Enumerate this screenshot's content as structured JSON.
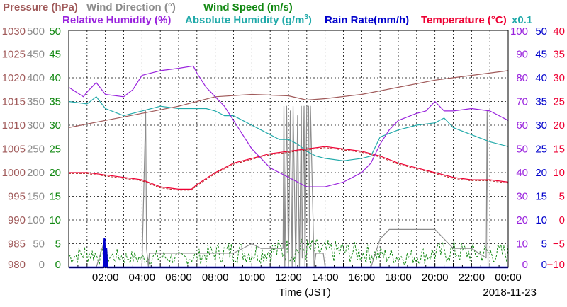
{
  "chart_data": {
    "type": "line",
    "date": "2018-11-23",
    "xlabel": "Time (JST)",
    "x_ticks": [
      "02:00",
      "04:00",
      "06:00",
      "08:00",
      "10:00",
      "12:00",
      "14:00",
      "16:00",
      "18:00",
      "20:00",
      "22:00",
      "00:00"
    ],
    "xlim": [
      0,
      24
    ],
    "grid": true,
    "legend": [
      {
        "label": "Pressure (hPa)",
        "color": "#a05a5a"
      },
      {
        "label": "Wind Direction (°)",
        "color": "#8c8c8c"
      },
      {
        "label": "Wind Speed (m/s)",
        "color": "#118811"
      },
      {
        "label": "Relative Humidity (%)",
        "color": "#9922dd"
      },
      {
        "label": "Absolute Humidity (g/m",
        "sup": "3",
        "tail": ")",
        "color": "#22aaaa"
      },
      {
        "label": "Rain Rate(mm/h)",
        "color": "#0000cc"
      },
      {
        "label": "Temperature (°C)",
        "color": "#ee0033"
      },
      {
        "label": "x0.1",
        "color": "#22aaaa"
      }
    ],
    "axes": {
      "pressure": {
        "ticks": [
          "1030",
          "1025",
          "1020",
          "1015",
          "1010",
          "1005",
          "1000",
          "995",
          "990",
          "985",
          "980"
        ],
        "ylim": [
          980,
          1030
        ],
        "color": "#a05a5a"
      },
      "wind_direction": {
        "ticks": [
          "500",
          "450",
          "400",
          "350",
          "300",
          "250",
          "200",
          "150",
          "100",
          "50",
          "0"
        ],
        "ylim": [
          0,
          500
        ],
        "color": "#8c8c8c"
      },
      "wind_speed": {
        "ticks": [
          "50",
          "45",
          "40",
          "35",
          "30",
          "25",
          "20",
          "15",
          "10",
          "5",
          "0"
        ],
        "ylim": [
          0,
          50
        ],
        "color": "#118811"
      },
      "relative_humidity": {
        "ticks": [
          "100",
          "90",
          "80",
          "70",
          "60",
          "50",
          "40",
          "30",
          "20",
          "10",
          "0"
        ],
        "ylim": [
          0,
          100
        ],
        "color": "#9922dd"
      },
      "rain_rate": {
        "ticks": [
          "50",
          "45",
          "40",
          "35",
          "30",
          "25",
          "20",
          "15",
          "10",
          "5",
          "0"
        ],
        "ylim": [
          0,
          50
        ],
        "color": "#0000cc"
      },
      "temperature": {
        "ticks": [
          "40",
          "35",
          "30",
          "25",
          "20",
          "15",
          "10",
          "5",
          "0",
          "−5",
          "−10"
        ],
        "ylim": [
          -10,
          40
        ],
        "color": "#ee0033"
      }
    },
    "series": [
      {
        "name": "Pressure (hPa)",
        "color": "#a05a5a",
        "axis": "pressure",
        "x": [
          0,
          2,
          4,
          6,
          8,
          10,
          12,
          13,
          14,
          16,
          18,
          20,
          22,
          24
        ],
        "y": [
          1009.5,
          1011,
          1012.5,
          1014,
          1016,
          1016.5,
          1016.2,
          1015.3,
          1015.6,
          1016.5,
          1018,
          1019.5,
          1020.5,
          1021.5
        ]
      },
      {
        "name": "Relative Humidity (%)",
        "color": "#9922dd",
        "axis": "relative_humidity",
        "x": [
          0,
          0.8,
          1,
          1.5,
          1.8,
          2,
          3,
          3.5,
          4,
          5,
          6,
          6.8,
          7,
          7.5,
          8,
          8.5,
          9,
          9.5,
          10,
          10.5,
          11,
          11.5,
          12,
          12.5,
          13,
          13.5,
          14,
          15,
          16,
          16.5,
          17,
          17.5,
          18,
          19,
          19.5,
          20,
          20.5,
          21,
          22,
          23,
          24
        ],
        "y": [
          76,
          72,
          74,
          78,
          75,
          73,
          72,
          75,
          81,
          83,
          84,
          85,
          82,
          76,
          72,
          68,
          62,
          56,
          50,
          46,
          42,
          40,
          38,
          36,
          34,
          34,
          34,
          36,
          40,
          44,
          52,
          58,
          62,
          65,
          66,
          70,
          66,
          66,
          67,
          66,
          62
        ]
      },
      {
        "name": "Absolute Humidity (g/m3)",
        "color": "#22aaaa",
        "axis": "relative_humidity",
        "x": [
          0,
          1,
          1.5,
          2,
          3,
          4,
          5,
          6,
          7,
          7.5,
          8,
          8.5,
          9,
          9.5,
          10,
          10.5,
          11,
          11.5,
          12,
          12.5,
          13,
          13.5,
          14,
          15,
          16,
          16.5,
          17,
          18,
          19,
          20,
          20.5,
          21,
          22,
          23,
          24
        ],
        "y": [
          70,
          69,
          72,
          67,
          64,
          66,
          68,
          67,
          67,
          67,
          66,
          64,
          64,
          62,
          60,
          58,
          56,
          54,
          54,
          52,
          49,
          47,
          46,
          45,
          46,
          47,
          55,
          58,
          60,
          61,
          63,
          59,
          56,
          53,
          51
        ]
      },
      {
        "name": "Temperature (°C)",
        "color": "#ee0033",
        "axis": "temperature",
        "x": [
          0,
          1,
          2,
          3,
          4,
          5,
          6,
          6.7,
          7,
          8,
          9,
          10,
          11,
          12,
          13,
          14,
          15,
          16,
          17,
          18,
          19,
          20,
          21,
          22,
          23,
          24
        ],
        "y": [
          10,
          10,
          9.5,
          9,
          8.5,
          7,
          6.5,
          6.5,
          7.5,
          10,
          12,
          13,
          14,
          14.5,
          15,
          15.5,
          15,
          14.5,
          13.5,
          12,
          11,
          10,
          9,
          8.5,
          8.5,
          8
        ]
      },
      {
        "name": "Wind Direction (°)",
        "color": "#8c8c8c",
        "axis": "wind_direction",
        "x": [
          0,
          1.5,
          1.9,
          2,
          3,
          4,
          4.2,
          4.25,
          4.35,
          4.4,
          5,
          6,
          7,
          8,
          9,
          10,
          10.5,
          11,
          11.7,
          11.75,
          11.8,
          11.9,
          12,
          12.1,
          12.2,
          12.25,
          12.4,
          12.5,
          12.6,
          12.7,
          12.75,
          12.85,
          12.9,
          13,
          13.1,
          13.15,
          13.2,
          13.4,
          13.5,
          13.9,
          14,
          14.2,
          15,
          16,
          16.5,
          17,
          17.5,
          18,
          19,
          20,
          21,
          22,
          22.8,
          22.85,
          22.9,
          23,
          24
        ],
        "y": [
          0,
          0,
          50,
          0,
          0,
          0,
          330,
          40,
          0,
          30,
          30,
          30,
          30,
          30,
          30,
          50,
          40,
          40,
          40,
          340,
          0,
          340,
          0,
          330,
          0,
          340,
          0,
          320,
          0,
          340,
          20,
          340,
          0,
          340,
          340,
          50,
          340,
          0,
          30,
          30,
          0,
          0,
          0,
          0,
          0,
          60,
          80,
          80,
          80,
          80,
          40,
          40,
          20,
          330,
          0,
          0,
          0
        ]
      },
      {
        "name": "Wind Speed (m/s)",
        "color": "#118811",
        "axis": "wind_speed",
        "pattern": "noisy",
        "x": [
          0,
          1,
          2,
          3,
          4,
          5,
          6,
          7,
          8,
          9,
          10,
          11,
          12,
          13,
          14,
          15,
          16,
          17,
          18,
          19,
          20,
          21,
          22,
          23,
          24
        ],
        "y": [
          3,
          4,
          3,
          3,
          2.5,
          3,
          2.5,
          3,
          4,
          4.5,
          4,
          4.5,
          5,
          5,
          4.5,
          4.5,
          4,
          3.5,
          3,
          3,
          4,
          4.5,
          4,
          4,
          4
        ]
      },
      {
        "name": "Rain Rate(mm/h)",
        "color": "#0000cc",
        "axis": "rain_rate",
        "x": [
          0,
          1.9,
          1.95,
          2,
          2.05,
          2.1,
          24
        ],
        "y": [
          0,
          0,
          6,
          0,
          4,
          0,
          0
        ]
      }
    ]
  }
}
